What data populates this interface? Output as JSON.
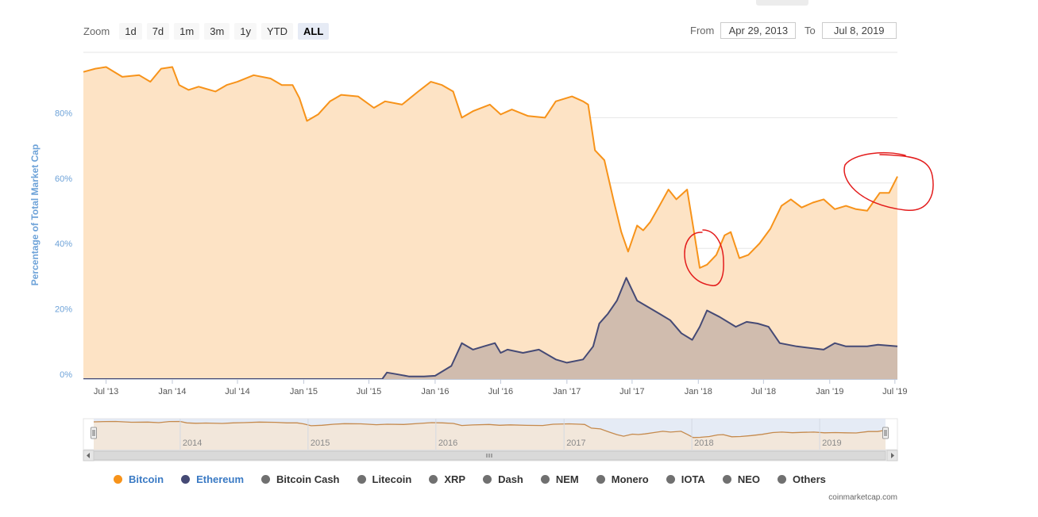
{
  "zoom": {
    "label": "Zoom",
    "buttons": [
      {
        "label": "1d",
        "active": false
      },
      {
        "label": "7d",
        "active": false
      },
      {
        "label": "1m",
        "active": false
      },
      {
        "label": "3m",
        "active": false
      },
      {
        "label": "1y",
        "active": false
      },
      {
        "label": "YTD",
        "active": false
      },
      {
        "label": "ALL",
        "active": true
      }
    ]
  },
  "range": {
    "from_label": "From",
    "from_value": "Apr 29, 2013",
    "to_label": "To",
    "to_value": "Jul 8, 2019"
  },
  "chart_data": {
    "type": "area",
    "ylabel": "Percentage of Total Market Cap",
    "ylim": [
      0,
      100
    ],
    "yticks": [
      0,
      20,
      40,
      60,
      80
    ],
    "ytick_labels": [
      "0%",
      "20%",
      "40%",
      "60%",
      "80%"
    ],
    "xlim": [
      "2013-04-29",
      "2019-07-08"
    ],
    "xticks": [
      {
        "date": "2013-07-01",
        "label": "Jul '13"
      },
      {
        "date": "2014-01-01",
        "label": "Jan '14"
      },
      {
        "date": "2014-07-01",
        "label": "Jul '14"
      },
      {
        "date": "2015-01-01",
        "label": "Jan '15"
      },
      {
        "date": "2015-07-01",
        "label": "Jul '15"
      },
      {
        "date": "2016-01-01",
        "label": "Jan '16"
      },
      {
        "date": "2016-07-01",
        "label": "Jul '16"
      },
      {
        "date": "2017-01-01",
        "label": "Jan '17"
      },
      {
        "date": "2017-07-01",
        "label": "Jul '17"
      },
      {
        "date": "2018-01-01",
        "label": "Jan '18"
      },
      {
        "date": "2018-07-01",
        "label": "Jul '18"
      },
      {
        "date": "2019-01-01",
        "label": "Jan '19"
      },
      {
        "date": "2019-07-01",
        "label": "Jul '19"
      }
    ],
    "series": [
      {
        "name": "Bitcoin",
        "color": "#f7931a",
        "points": [
          [
            "2013-04-29",
            94
          ],
          [
            "2013-06-01",
            95
          ],
          [
            "2013-07-01",
            95.5
          ],
          [
            "2013-08-15",
            92.5
          ],
          [
            "2013-10-01",
            93
          ],
          [
            "2013-11-01",
            91
          ],
          [
            "2013-12-01",
            95
          ],
          [
            "2014-01-01",
            95.5
          ],
          [
            "2014-01-20",
            90
          ],
          [
            "2014-02-15",
            88.5
          ],
          [
            "2014-03-15",
            89.5
          ],
          [
            "2014-05-01",
            88
          ],
          [
            "2014-06-01",
            90
          ],
          [
            "2014-07-01",
            91
          ],
          [
            "2014-08-15",
            93
          ],
          [
            "2014-10-01",
            92
          ],
          [
            "2014-11-01",
            90
          ],
          [
            "2014-12-01",
            90
          ],
          [
            "2014-12-20",
            86
          ],
          [
            "2015-01-10",
            79
          ],
          [
            "2015-02-10",
            81
          ],
          [
            "2015-03-15",
            85
          ],
          [
            "2015-04-15",
            87
          ],
          [
            "2015-06-01",
            86.5
          ],
          [
            "2015-07-15",
            83
          ],
          [
            "2015-08-15",
            85
          ],
          [
            "2015-10-01",
            84
          ],
          [
            "2015-11-15",
            88
          ],
          [
            "2015-12-20",
            91
          ],
          [
            "2016-01-20",
            90
          ],
          [
            "2016-02-20",
            88
          ],
          [
            "2016-03-15",
            80
          ],
          [
            "2016-04-15",
            82
          ],
          [
            "2016-06-01",
            84
          ],
          [
            "2016-07-01",
            81
          ],
          [
            "2016-08-01",
            82.5
          ],
          [
            "2016-09-15",
            80.5
          ],
          [
            "2016-11-01",
            80
          ],
          [
            "2016-12-01",
            85
          ],
          [
            "2017-01-15",
            86.5
          ],
          [
            "2017-02-15",
            85
          ],
          [
            "2017-03-01",
            84
          ],
          [
            "2017-03-20",
            70
          ],
          [
            "2017-04-15",
            67
          ],
          [
            "2017-05-10",
            55
          ],
          [
            "2017-06-01",
            45
          ],
          [
            "2017-06-20",
            39
          ],
          [
            "2017-07-15",
            47
          ],
          [
            "2017-08-01",
            45.5
          ],
          [
            "2017-08-20",
            48
          ],
          [
            "2017-09-15",
            53
          ],
          [
            "2017-10-10",
            58
          ],
          [
            "2017-11-01",
            55
          ],
          [
            "2017-12-01",
            58
          ],
          [
            "2017-12-20",
            45
          ],
          [
            "2018-01-05",
            34
          ],
          [
            "2018-01-25",
            35
          ],
          [
            "2018-02-20",
            38
          ],
          [
            "2018-03-15",
            44
          ],
          [
            "2018-04-01",
            45
          ],
          [
            "2018-04-25",
            37
          ],
          [
            "2018-05-20",
            38
          ],
          [
            "2018-06-20",
            41.5
          ],
          [
            "2018-07-20",
            46
          ],
          [
            "2018-08-20",
            53
          ],
          [
            "2018-09-15",
            55
          ],
          [
            "2018-10-15",
            52.5
          ],
          [
            "2018-11-15",
            54
          ],
          [
            "2018-12-15",
            55
          ],
          [
            "2019-01-15",
            52
          ],
          [
            "2019-02-15",
            53
          ],
          [
            "2019-03-15",
            52
          ],
          [
            "2019-04-15",
            51.5
          ],
          [
            "2019-05-20",
            57
          ],
          [
            "2019-06-15",
            57
          ],
          [
            "2019-07-08",
            62
          ]
        ]
      },
      {
        "name": "Ethereum",
        "color": "#454a75",
        "points": [
          [
            "2013-04-29",
            0
          ],
          [
            "2015-08-07",
            0
          ],
          [
            "2015-08-20",
            2
          ],
          [
            "2015-09-15",
            1.5
          ],
          [
            "2015-10-20",
            0.8
          ],
          [
            "2015-12-01",
            0.8
          ],
          [
            "2016-01-01",
            1
          ],
          [
            "2016-02-15",
            4
          ],
          [
            "2016-03-15",
            11
          ],
          [
            "2016-04-15",
            9
          ],
          [
            "2016-05-15",
            10
          ],
          [
            "2016-06-15",
            11
          ],
          [
            "2016-07-01",
            8
          ],
          [
            "2016-07-20",
            9
          ],
          [
            "2016-09-01",
            8
          ],
          [
            "2016-10-15",
            9
          ],
          [
            "2016-12-01",
            6
          ],
          [
            "2017-01-01",
            5
          ],
          [
            "2017-02-15",
            6
          ],
          [
            "2017-03-15",
            10
          ],
          [
            "2017-04-01",
            17
          ],
          [
            "2017-04-25",
            20
          ],
          [
            "2017-05-20",
            24
          ],
          [
            "2017-06-15",
            31
          ],
          [
            "2017-07-15",
            24
          ],
          [
            "2017-08-15",
            22
          ],
          [
            "2017-09-15",
            20
          ],
          [
            "2017-10-15",
            18
          ],
          [
            "2017-11-15",
            14
          ],
          [
            "2017-12-15",
            12
          ],
          [
            "2018-01-05",
            16
          ],
          [
            "2018-01-25",
            21
          ],
          [
            "2018-03-01",
            19
          ],
          [
            "2018-04-15",
            16
          ],
          [
            "2018-05-15",
            17.5
          ],
          [
            "2018-06-15",
            17
          ],
          [
            "2018-07-15",
            16
          ],
          [
            "2018-08-15",
            11
          ],
          [
            "2018-10-01",
            10
          ],
          [
            "2018-12-15",
            9
          ],
          [
            "2019-01-15",
            11
          ],
          [
            "2019-02-15",
            10
          ],
          [
            "2019-04-15",
            10
          ],
          [
            "2019-05-15",
            10.5
          ],
          [
            "2019-07-08",
            10
          ]
        ]
      }
    ],
    "navigator": {
      "labels": [
        "2014",
        "2015",
        "2016",
        "2017",
        "2018",
        "2019"
      ],
      "label_dates": [
        "2014-01-01",
        "2015-01-01",
        "2016-01-01",
        "2017-01-01",
        "2018-01-01",
        "2019-01-01"
      ]
    },
    "annotations": [
      {
        "type": "hand-drawn-circle",
        "color": "#e31c1c",
        "around": [
          "2018-01-01",
          "2018-03-01"
        ]
      },
      {
        "type": "hand-drawn-circle",
        "color": "#e31c1c",
        "around": [
          "2019-03-01",
          "2019-07-08"
        ]
      }
    ]
  },
  "legend": [
    {
      "name": "Bitcoin",
      "color": "#f7931a",
      "text_color": "#3a7ac4"
    },
    {
      "name": "Ethereum",
      "color": "#454a75",
      "text_color": "#3a7ac4"
    },
    {
      "name": "Bitcoin Cash",
      "color": "#707070",
      "text_color": "#333333"
    },
    {
      "name": "Litecoin",
      "color": "#707070",
      "text_color": "#333333"
    },
    {
      "name": "XRP",
      "color": "#707070",
      "text_color": "#333333"
    },
    {
      "name": "Dash",
      "color": "#707070",
      "text_color": "#333333"
    },
    {
      "name": "NEM",
      "color": "#707070",
      "text_color": "#333333"
    },
    {
      "name": "Monero",
      "color": "#707070",
      "text_color": "#333333"
    },
    {
      "name": "IOTA",
      "color": "#707070",
      "text_color": "#333333"
    },
    {
      "name": "NEO",
      "color": "#707070",
      "text_color": "#333333"
    },
    {
      "name": "Others",
      "color": "#707070",
      "text_color": "#333333"
    }
  ],
  "credits": "coinmarketcap.com",
  "colors": {
    "bitcoin_fill": "#fde3c5",
    "ethereum_fill": "#cdb9ad",
    "axis_label": "#6da2d8",
    "annotation": "#e31c1c",
    "navigator_mask": "#dfe6f3"
  }
}
